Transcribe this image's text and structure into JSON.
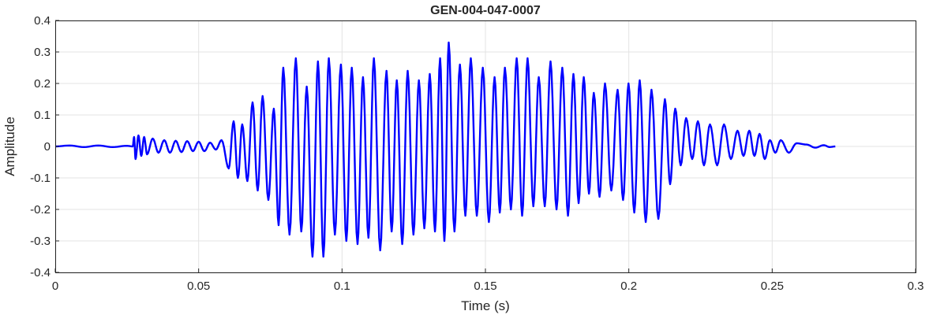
{
  "chart_data": {
    "type": "line",
    "title": "GEN-004-047-0007",
    "xlabel": "Time (s)",
    "ylabel": "Amplitude",
    "xlim": [
      0,
      0.3
    ],
    "ylim": [
      -0.4,
      0.4
    ],
    "xticks": [
      "0",
      "0.05",
      "0.1",
      "0.15",
      "0.2",
      "0.25",
      "0.3"
    ],
    "xtick_values": [
      0,
      0.05,
      0.1,
      0.15,
      0.2,
      0.25,
      0.3
    ],
    "yticks": [
      "0.4",
      "0.3",
      "0.2",
      "0.1",
      "0",
      "-0.1",
      "-0.2",
      "-0.3",
      "-0.4"
    ],
    "ytick_values": [
      0.4,
      0.3,
      0.2,
      0.1,
      0,
      -0.1,
      -0.2,
      -0.3,
      -0.4
    ],
    "grid": true,
    "line_color": "#0000ff",
    "series": [
      {
        "description_points": "approximate waveform extrema [time_s, amplitude]",
        "early": [
          [
            0,
            0
          ],
          [
            0.005,
            0.003
          ],
          [
            0.01,
            -0.002
          ],
          [
            0.015,
            0.003
          ],
          [
            0.02,
            -0.002
          ],
          [
            0.025,
            0.002
          ],
          [
            0.027,
            0.0
          ],
          [
            0.0275,
            0.03
          ],
          [
            0.028,
            -0.04
          ],
          [
            0.029,
            0.035
          ],
          [
            0.03,
            -0.03
          ],
          [
            0.031,
            0.03
          ],
          [
            0.032,
            -0.025
          ],
          [
            0.034,
            0.025
          ],
          [
            0.036,
            -0.02
          ],
          [
            0.038,
            0.02
          ],
          [
            0.04,
            -0.02
          ],
          [
            0.042,
            0.018
          ],
          [
            0.044,
            -0.018
          ],
          [
            0.046,
            0.017
          ],
          [
            0.048,
            -0.015
          ],
          [
            0.05,
            0.015
          ],
          [
            0.052,
            -0.015
          ],
          [
            0.054,
            0.012
          ],
          [
            0.056,
            -0.01
          ],
          [
            0.058,
            0.02
          ],
          [
            0.0605,
            -0.07
          ]
        ],
        "peaks": [
          [
            0.0622,
            0.08
          ],
          [
            0.0652,
            0.07
          ],
          [
            0.0688,
            0.14
          ],
          [
            0.0723,
            0.16
          ],
          [
            0.0762,
            0.12
          ],
          [
            0.0795,
            0.25
          ],
          [
            0.0839,
            0.28
          ],
          [
            0.0877,
            0.19
          ],
          [
            0.0916,
            0.27
          ],
          [
            0.0954,
            0.28
          ],
          [
            0.0996,
            0.26
          ],
          [
            0.1034,
            0.25
          ],
          [
            0.1073,
            0.22
          ],
          [
            0.1111,
            0.28
          ],
          [
            0.1155,
            0.24
          ],
          [
            0.1191,
            0.21
          ],
          [
            0.1229,
            0.24
          ],
          [
            0.1268,
            0.21
          ],
          [
            0.1306,
            0.23
          ],
          [
            0.1342,
            0.28
          ],
          [
            0.1372,
            0.33
          ],
          [
            0.1411,
            0.26
          ],
          [
            0.1449,
            0.28
          ],
          [
            0.1491,
            0.25
          ],
          [
            0.1532,
            0.22
          ],
          [
            0.1568,
            0.25
          ],
          [
            0.1609,
            0.28
          ],
          [
            0.1647,
            0.28
          ],
          [
            0.1686,
            0.22
          ],
          [
            0.1727,
            0.27
          ],
          [
            0.1768,
            0.25
          ],
          [
            0.1807,
            0.23
          ],
          [
            0.1843,
            0.22
          ],
          [
            0.1878,
            0.17
          ],
          [
            0.1917,
            0.2
          ],
          [
            0.1961,
            0.18
          ],
          [
            0.1999,
            0.2
          ],
          [
            0.2038,
            0.21
          ],
          [
            0.2079,
            0.18
          ],
          [
            0.2126,
            0.15
          ],
          [
            0.2162,
            0.12
          ],
          [
            0.22,
            0.09
          ],
          [
            0.2241,
            0.08
          ],
          [
            0.2283,
            0.07
          ],
          [
            0.2332,
            0.07
          ],
          [
            0.2379,
            0.05
          ],
          [
            0.242,
            0.05
          ],
          [
            0.2456,
            0.04
          ],
          [
            0.2492,
            0.02
          ],
          [
            0.253,
            0.02
          ],
          [
            0.2585,
            0.01
          ]
        ],
        "troughs": [
          [
            0.0637,
            -0.1
          ],
          [
            0.067,
            -0.11
          ],
          [
            0.0706,
            -0.14
          ],
          [
            0.0743,
            -0.17
          ],
          [
            0.0779,
            -0.25
          ],
          [
            0.0817,
            -0.28
          ],
          [
            0.0858,
            -0.27
          ],
          [
            0.0897,
            -0.35
          ],
          [
            0.0935,
            -0.35
          ],
          [
            0.0975,
            -0.28
          ],
          [
            0.1015,
            -0.3
          ],
          [
            0.1054,
            -0.31
          ],
          [
            0.1092,
            -0.29
          ],
          [
            0.1133,
            -0.33
          ],
          [
            0.1173,
            -0.27
          ],
          [
            0.121,
            -0.31
          ],
          [
            0.1249,
            -0.28
          ],
          [
            0.1287,
            -0.26
          ],
          [
            0.1324,
            -0.27
          ],
          [
            0.1357,
            -0.3
          ],
          [
            0.1392,
            -0.27
          ],
          [
            0.143,
            -0.22
          ],
          [
            0.147,
            -0.22
          ],
          [
            0.1512,
            -0.24
          ],
          [
            0.155,
            -0.21
          ],
          [
            0.1589,
            -0.2
          ],
          [
            0.1628,
            -0.22
          ],
          [
            0.1667,
            -0.19
          ],
          [
            0.1707,
            -0.19
          ],
          [
            0.1748,
            -0.2
          ],
          [
            0.1788,
            -0.22
          ],
          [
            0.1825,
            -0.18
          ],
          [
            0.1861,
            -0.15
          ],
          [
            0.1898,
            -0.16
          ],
          [
            0.1939,
            -0.14
          ],
          [
            0.198,
            -0.17
          ],
          [
            0.2019,
            -0.21
          ],
          [
            0.2059,
            -0.24
          ],
          [
            0.2103,
            -0.23
          ],
          [
            0.2144,
            -0.12
          ],
          [
            0.2181,
            -0.06
          ],
          [
            0.2221,
            -0.04
          ],
          [
            0.2262,
            -0.06
          ],
          [
            0.2308,
            -0.06
          ],
          [
            0.2356,
            -0.04
          ],
          [
            0.24,
            -0.03
          ],
          [
            0.2438,
            -0.03
          ],
          [
            0.2474,
            -0.04
          ],
          [
            0.2511,
            -0.02
          ],
          [
            0.2558,
            -0.02
          ]
        ],
        "tail": [
          [
            0.262,
            0.006
          ],
          [
            0.265,
            -0.004
          ],
          [
            0.268,
            0.004
          ],
          [
            0.27,
            -0.002
          ],
          [
            0.272,
            0
          ]
        ]
      }
    ]
  }
}
